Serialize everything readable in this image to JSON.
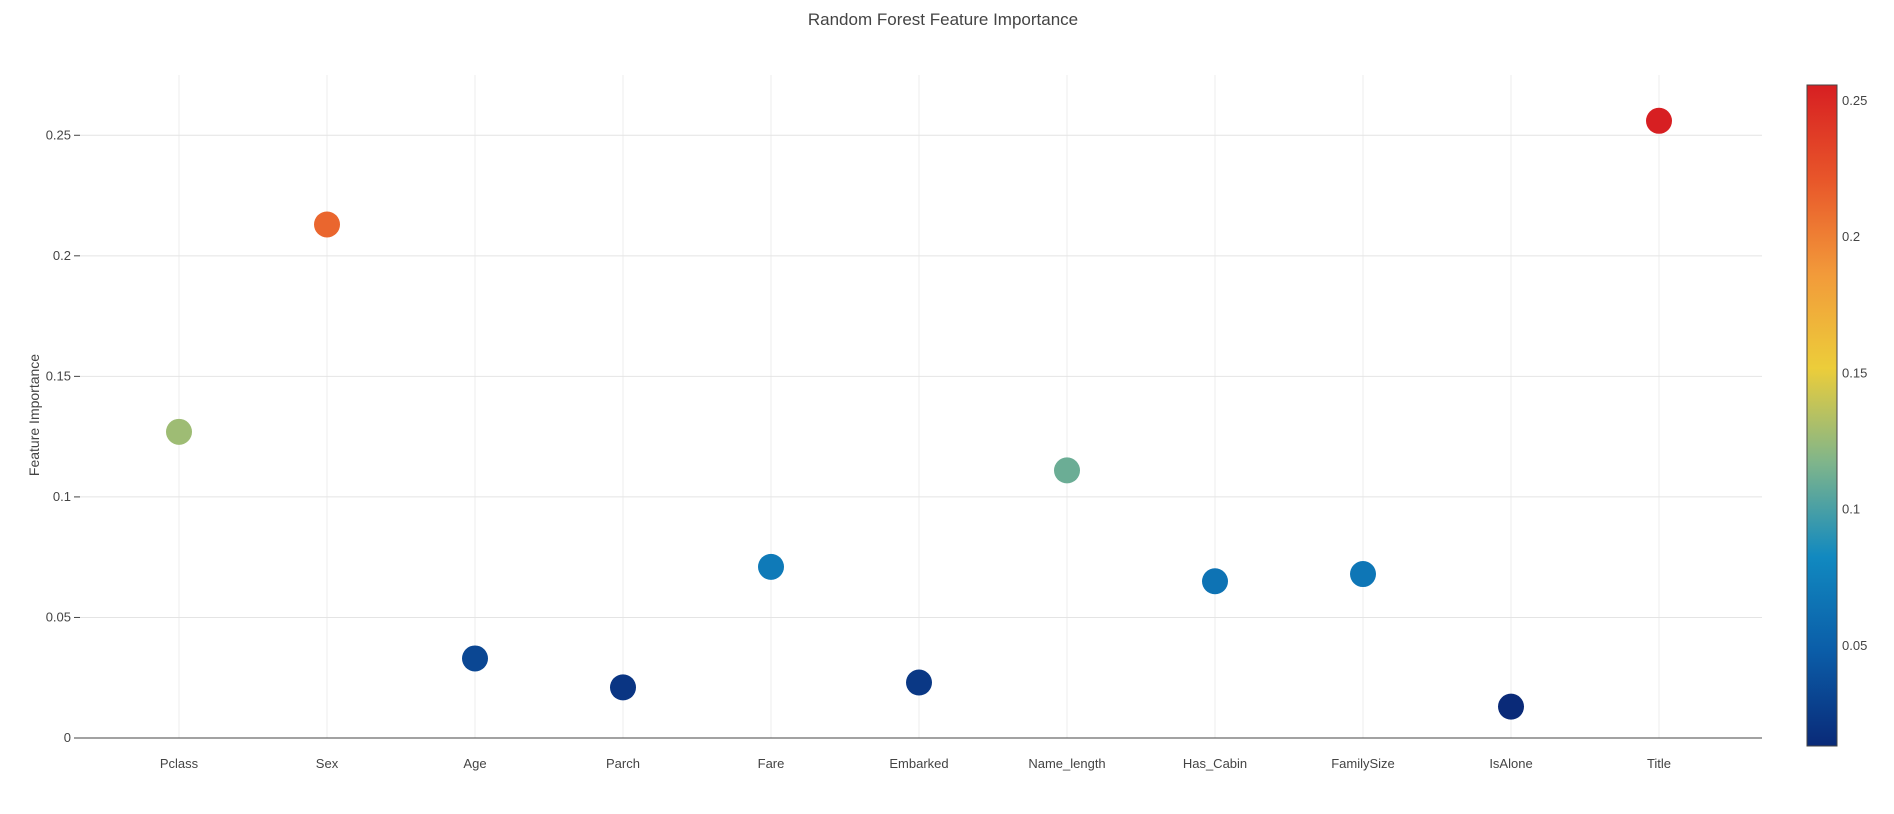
{
  "chart_data": {
    "type": "scatter",
    "title": "Random Forest Feature Importance",
    "xlabel": "",
    "ylabel": "Feature Importance",
    "categories": [
      "Pclass",
      "Sex",
      "Age",
      "Parch",
      "Fare",
      "Embarked",
      "Name_length",
      "Has_Cabin",
      "FamilySize",
      "IsAlone",
      "Title"
    ],
    "values": [
      0.127,
      0.213,
      0.033,
      0.021,
      0.071,
      0.023,
      0.111,
      0.065,
      0.068,
      0.013,
      0.256
    ],
    "ylim": [
      0,
      0.275
    ],
    "yticks": [
      0,
      0.05,
      0.1,
      0.15,
      0.2,
      0.25
    ],
    "ytick_labels": [
      "0",
      "0.05",
      "0.1",
      "0.15",
      "0.2",
      "0.25"
    ],
    "grid": true,
    "colorbar": {
      "min": 0.0133,
      "max": 0.2558,
      "ticks": [
        0.05,
        0.1,
        0.15,
        0.2,
        0.25
      ],
      "tick_labels": [
        "0.05",
        "0.1",
        "0.15",
        "0.2",
        "0.25"
      ],
      "colorscale": [
        "#0a2a78",
        "#0b5da8",
        "#1189c0",
        "#7fb58b",
        "#eccd3a",
        "#f29a3a",
        "#e8562a",
        "#d71f22"
      ]
    }
  }
}
